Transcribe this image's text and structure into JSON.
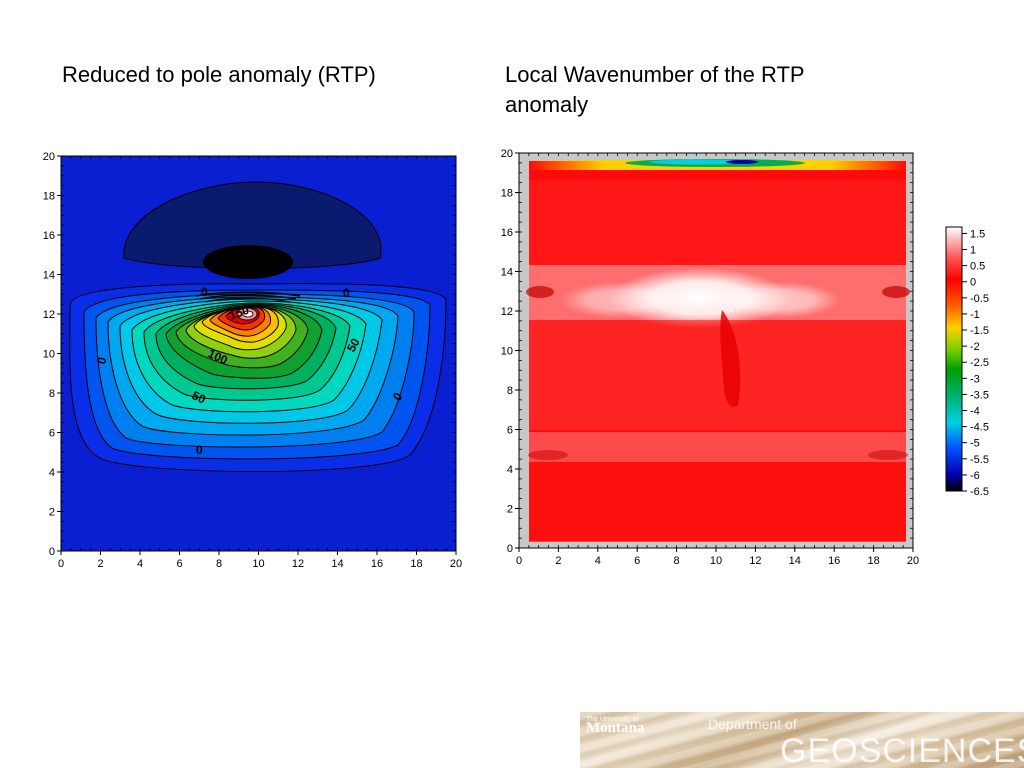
{
  "titles": {
    "left": "Reduced to pole anomaly (RTP)",
    "right": "Local Wavenumber of the RTP anomaly"
  },
  "chart_data": [
    {
      "type": "heatmap",
      "subtype": "filled-contour",
      "title": "Reduced to pole anomaly (RTP)",
      "xlim": [
        0,
        20
      ],
      "ylim": [
        0,
        20
      ],
      "xticks": [
        "0",
        "2",
        "4",
        "6",
        "8",
        "10",
        "12",
        "14",
        "16",
        "18",
        "20"
      ],
      "yticks": [
        "0",
        "2",
        "4",
        "6",
        "8",
        "10",
        "12",
        "14",
        "16",
        "18",
        "20"
      ],
      "contour_labels": [
        "0",
        "0",
        "0",
        "0",
        "0",
        "50",
        "50",
        "100",
        "150"
      ],
      "peak": {
        "x": 9.5,
        "y": 12
      },
      "low": {
        "x": 9.3,
        "y": 14.5
      },
      "colors": {
        "background": "#0a1fd1",
        "low": "#000000",
        "negative": "#0a1a6e",
        "peak": "#ffffff"
      }
    },
    {
      "type": "heatmap",
      "title": "Local Wavenumber of the RTP anomaly",
      "xlim": [
        0,
        20
      ],
      "ylim": [
        0,
        20
      ],
      "xticks": [
        "0",
        "2",
        "4",
        "6",
        "8",
        "10",
        "12",
        "14",
        "16",
        "18",
        "20"
      ],
      "yticks": [
        "0",
        "2",
        "4",
        "6",
        "8",
        "10",
        "12",
        "14",
        "16",
        "18",
        "20"
      ],
      "colorbar": {
        "ticks": [
          "1.5",
          "1",
          "0.5",
          "0",
          "-0.5",
          "-1",
          "-1.5",
          "-2",
          "-2.5",
          "-3",
          "-3.5",
          "-4",
          "-4.5",
          "-5",
          "-5.5",
          "-6",
          "-6.5"
        ],
        "range": [
          -6.5,
          1.7
        ],
        "colors": [
          "#000000",
          "#0000a8",
          "#0050ff",
          "#00d0e0",
          "#00b070",
          "#00a000",
          "#80d000",
          "#ffd000",
          "#ff6000",
          "#ff0000",
          "#ffffff"
        ]
      }
    }
  ],
  "footer": {
    "univ_small": "The University of",
    "univ": "Montana",
    "dept": "Department of",
    "geo": "GEOSCIENCES"
  }
}
